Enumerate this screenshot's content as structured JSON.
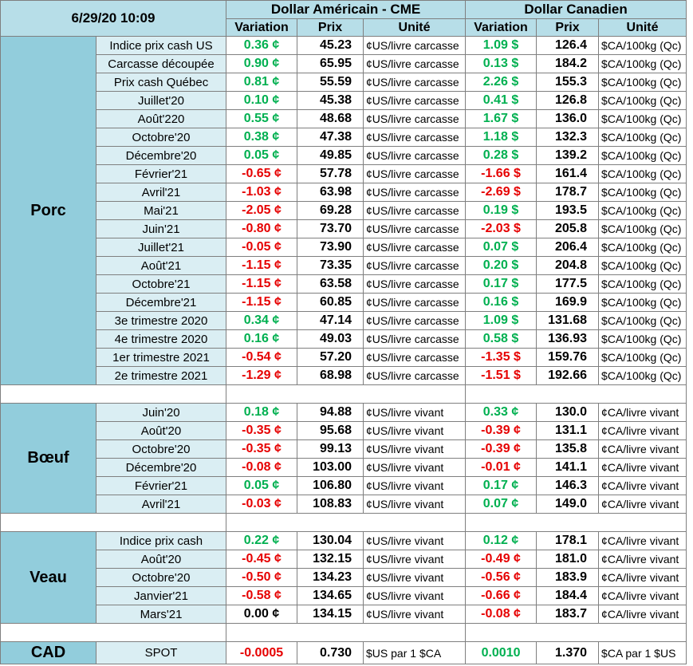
{
  "header": {
    "timestamp": "6/29/20 10:09",
    "us_title": "Dollar Américain - CME",
    "ca_title": "Dollar Canadien",
    "us_columns": [
      "Variation",
      "Prix",
      "Unité"
    ],
    "ca_columns": [
      "Variation",
      "Prix",
      "Unité"
    ]
  },
  "sections": [
    {
      "label": "Porc",
      "rows": [
        [
          "Indice prix cash US",
          "0.36 ¢",
          "45.23",
          "¢US/livre carcasse",
          "1.09 $",
          "126.4",
          "$CA/100kg (Qc)"
        ],
        [
          "Carcasse découpée",
          "0.90 ¢",
          "65.95",
          "¢US/livre carcasse",
          "0.13 $",
          "184.2",
          "$CA/100kg (Qc)"
        ],
        [
          "Prix cash Québec",
          "0.81 ¢",
          "55.59",
          "¢US/livre carcasse",
          "2.26 $",
          "155.3",
          "$CA/100kg (Qc)"
        ],
        [
          "Juillet'20",
          "0.10 ¢",
          "45.38",
          "¢US/livre carcasse",
          "0.41 $",
          "126.8",
          "$CA/100kg (Qc)"
        ],
        [
          "Août'220",
          "0.55 ¢",
          "48.68",
          "¢US/livre carcasse",
          "1.67 $",
          "136.0",
          "$CA/100kg (Qc)"
        ],
        [
          "Octobre'20",
          "0.38 ¢",
          "47.38",
          "¢US/livre carcasse",
          "1.18 $",
          "132.3",
          "$CA/100kg (Qc)"
        ],
        [
          "Décembre'20",
          "0.05 ¢",
          "49.85",
          "¢US/livre carcasse",
          "0.28 $",
          "139.2",
          "$CA/100kg (Qc)"
        ],
        [
          "Février'21",
          "-0.65 ¢",
          "57.78",
          "¢US/livre carcasse",
          "-1.66 $",
          "161.4",
          "$CA/100kg (Qc)"
        ],
        [
          "Avril'21",
          "-1.03 ¢",
          "63.98",
          "¢US/livre carcasse",
          "-2.69 $",
          "178.7",
          "$CA/100kg (Qc)"
        ],
        [
          "Mai'21",
          "-2.05 ¢",
          "69.28",
          "¢US/livre carcasse",
          "0.19 $",
          "193.5",
          "$CA/100kg (Qc)"
        ],
        [
          "Juin'21",
          "-0.80 ¢",
          "73.70",
          "¢US/livre carcasse",
          "-2.03 $",
          "205.8",
          "$CA/100kg (Qc)"
        ],
        [
          "Juillet'21",
          "-0.05 ¢",
          "73.90",
          "¢US/livre carcasse",
          "0.07 $",
          "206.4",
          "$CA/100kg (Qc)"
        ],
        [
          "Août'21",
          "-1.15 ¢",
          "73.35",
          "¢US/livre carcasse",
          "0.20 $",
          "204.8",
          "$CA/100kg (Qc)"
        ],
        [
          "Octobre'21",
          "-1.15 ¢",
          "63.58",
          "¢US/livre carcasse",
          "0.17 $",
          "177.5",
          "$CA/100kg (Qc)"
        ],
        [
          "Décembre'21",
          "-1.15 ¢",
          "60.85",
          "¢US/livre carcasse",
          "0.16 $",
          "169.9",
          "$CA/100kg (Qc)"
        ],
        [
          "3e trimestre 2020",
          "0.34 ¢",
          "47.14",
          "¢US/livre carcasse",
          "1.09 $",
          "131.68",
          "$CA/100kg (Qc)"
        ],
        [
          "4e trimestre 2020",
          "0.16 ¢",
          "49.03",
          "¢US/livre carcasse",
          "0.58 $",
          "136.93",
          "$CA/100kg (Qc)"
        ],
        [
          "1er trimestre 2021",
          "-0.54 ¢",
          "57.20",
          "¢US/livre carcasse",
          "-1.35 $",
          "159.76",
          "$CA/100kg (Qc)"
        ],
        [
          "2e trimestre 2021",
          "-1.29 ¢",
          "68.98",
          "¢US/livre carcasse",
          "-1.51 $",
          "192.66",
          "$CA/100kg (Qc)"
        ]
      ]
    },
    {
      "label": "Bœuf",
      "rows": [
        [
          "Juin'20",
          "0.18 ¢",
          "94.88",
          "¢US/livre vivant",
          "0.33 ¢",
          "130.0",
          "¢CA/livre vivant"
        ],
        [
          "Août'20",
          "-0.35 ¢",
          "95.68",
          "¢US/livre vivant",
          "-0.39 ¢",
          "131.1",
          "¢CA/livre vivant"
        ],
        [
          "Octobre'20",
          "-0.35 ¢",
          "99.13",
          "¢US/livre vivant",
          "-0.39 ¢",
          "135.8",
          "¢CA/livre vivant"
        ],
        [
          "Décembre'20",
          "-0.08 ¢",
          "103.00",
          "¢US/livre vivant",
          "-0.01 ¢",
          "141.1",
          "¢CA/livre vivant"
        ],
        [
          "Février'21",
          "0.05 ¢",
          "106.80",
          "¢US/livre vivant",
          "0.17 ¢",
          "146.3",
          "¢CA/livre vivant"
        ],
        [
          "Avril'21",
          "-0.03 ¢",
          "108.83",
          "¢US/livre vivant",
          "0.07 ¢",
          "149.0",
          "¢CA/livre vivant"
        ]
      ]
    },
    {
      "label": "Veau",
      "rows": [
        [
          "Indice prix cash",
          "0.22 ¢",
          "130.04",
          "¢US/livre vivant",
          "0.12 ¢",
          "178.1",
          "¢CA/livre vivant"
        ],
        [
          "Août'20",
          "-0.45 ¢",
          "132.15",
          "¢US/livre vivant",
          "-0.49 ¢",
          "181.0",
          "¢CA/livre vivant"
        ],
        [
          "Octobre'20",
          "-0.50 ¢",
          "134.23",
          "¢US/livre vivant",
          "-0.56 ¢",
          "183.9",
          "¢CA/livre vivant"
        ],
        [
          "Janvier'21",
          "-0.58 ¢",
          "134.65",
          "¢US/livre vivant",
          "-0.66 ¢",
          "184.4",
          "¢CA/livre vivant"
        ],
        [
          "Mars'21",
          "0.00 ¢",
          "134.15",
          "¢US/livre vivant",
          "-0.08 ¢",
          "183.7",
          "¢CA/livre vivant"
        ]
      ]
    },
    {
      "label": "CAD",
      "rows": [
        [
          "SPOT",
          "-0.0005",
          "0.730",
          "$US par 1 $CA",
          "0.0010",
          "1.370",
          "$CA par 1 $US"
        ]
      ]
    }
  ]
}
